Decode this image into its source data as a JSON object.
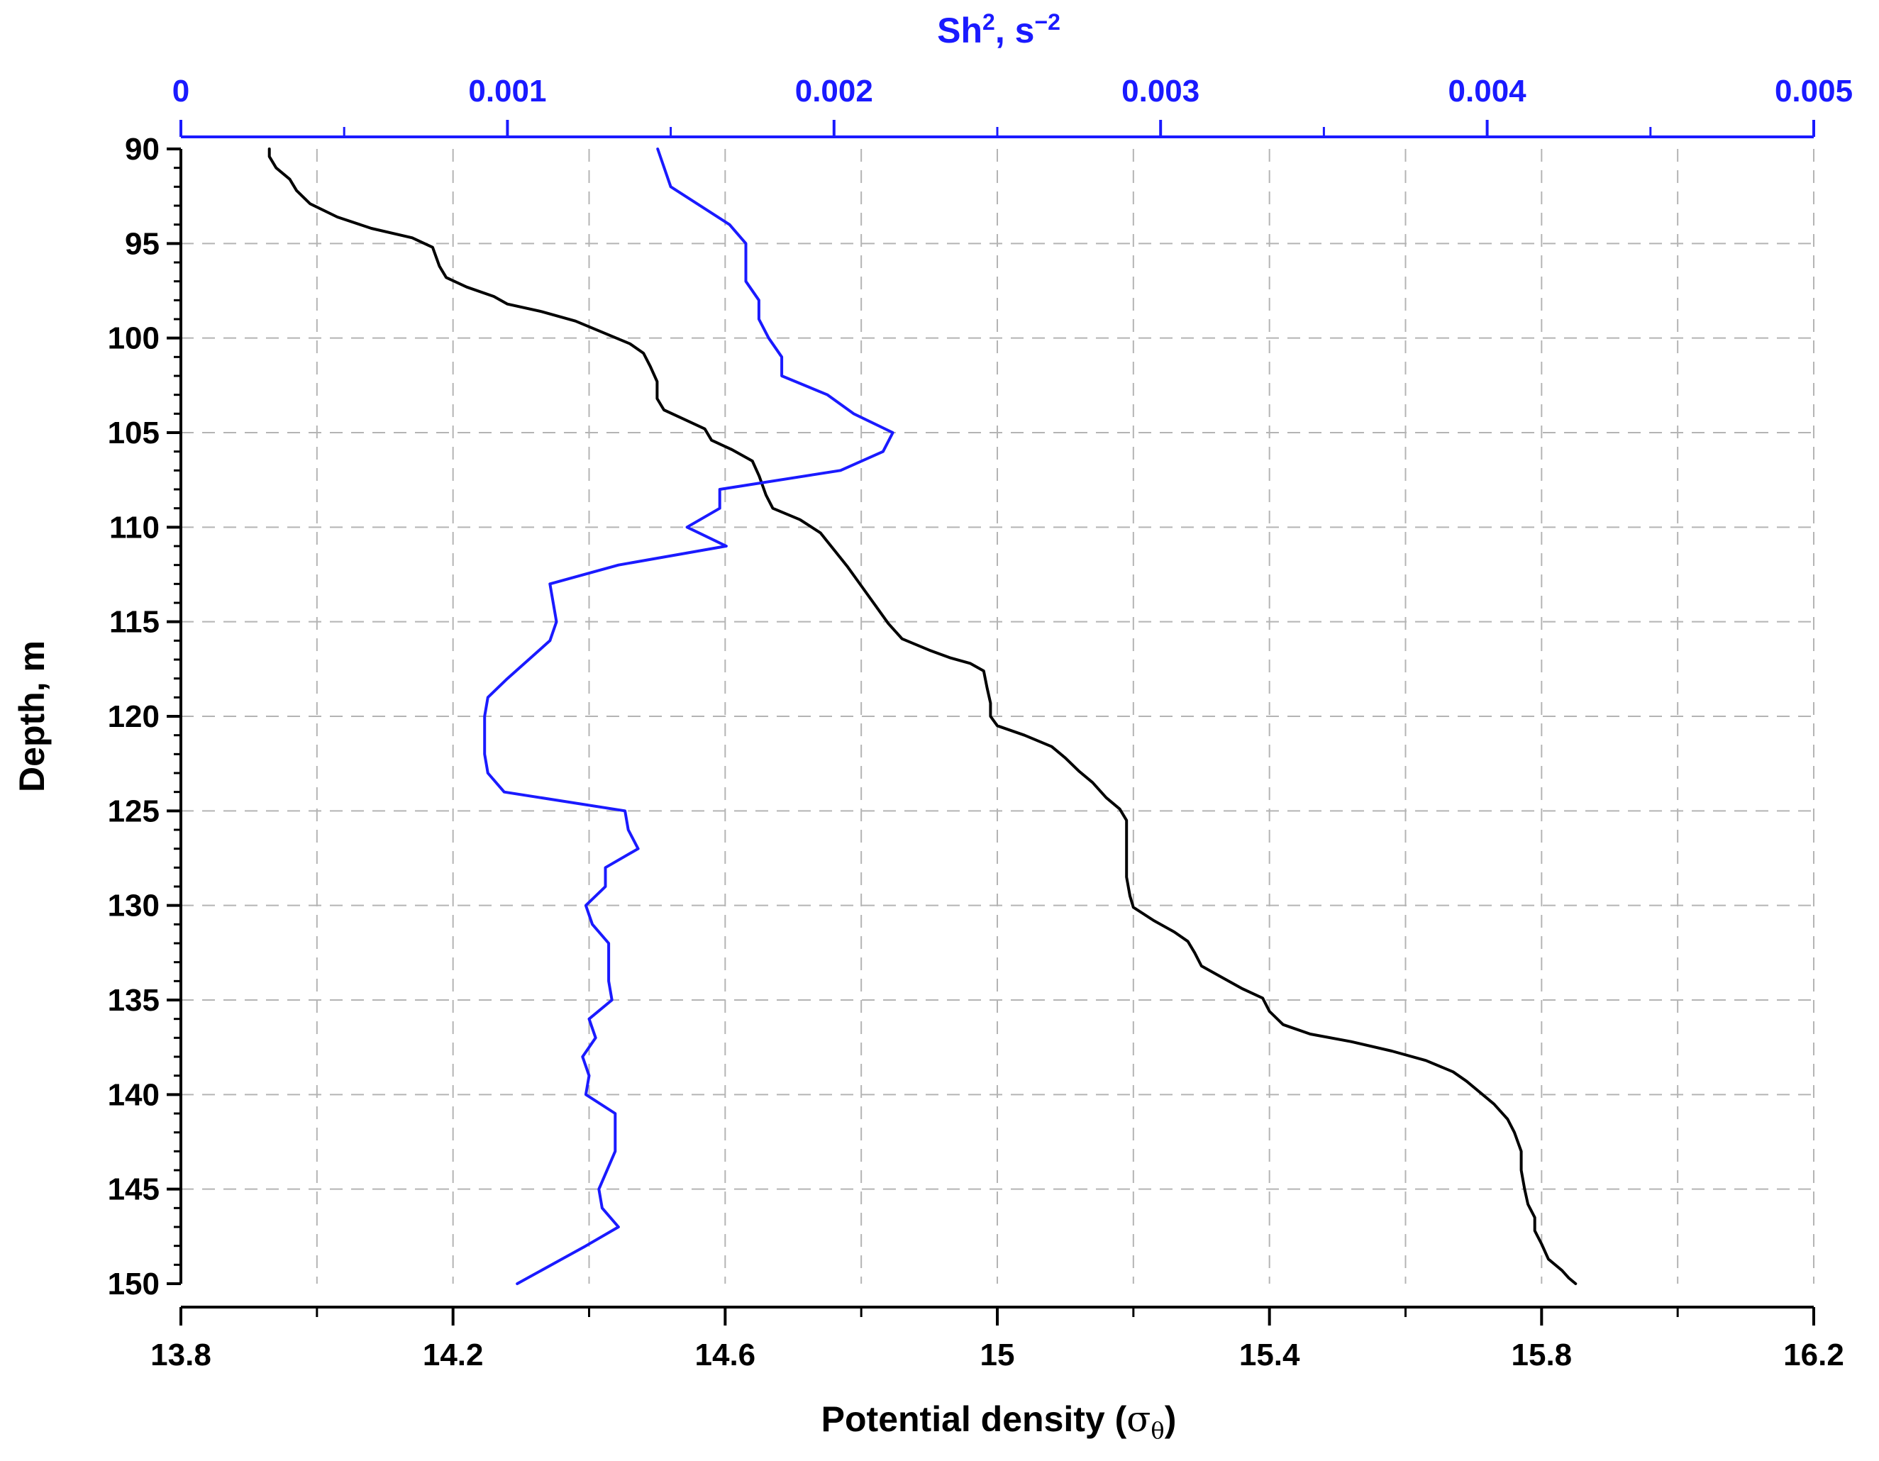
{
  "chart_data": {
    "type": "line",
    "ylabel": "Depth, m",
    "y_axis": {
      "range": [
        90,
        150
      ],
      "inverted": true,
      "ticks": [
        90,
        95,
        100,
        105,
        110,
        115,
        120,
        125,
        130,
        135,
        140,
        145,
        150
      ],
      "tick_labels": [
        "90",
        "95",
        "100",
        "105",
        "110",
        "115",
        "120",
        "125",
        "130",
        "135",
        "140",
        "145",
        "150"
      ]
    },
    "x_bottom": {
      "label_main": "Potential density (",
      "label_symbol": "σ",
      "label_sub": "θ",
      "label_end": ")",
      "range": [
        13.8,
        16.2
      ],
      "ticks": [
        13.8,
        14.2,
        14.6,
        15,
        15.4,
        15.8,
        16.2
      ],
      "tick_labels": [
        "13.8",
        "14.2",
        "14.6",
        "15",
        "15.4",
        "15.8",
        "16.2"
      ],
      "minor_ticks": [
        14.0,
        14.4,
        14.8,
        15.2,
        15.6,
        16.0
      ],
      "color": "#000000"
    },
    "x_top": {
      "label_base": "Sh",
      "label_sup": "2",
      "label_unit": ", s",
      "label_unit_sup": "−2",
      "range": [
        0,
        0.005
      ],
      "ticks": [
        0,
        0.001,
        0.002,
        0.003,
        0.004,
        0.005
      ],
      "tick_labels": [
        "0",
        "0.001",
        "0.002",
        "0.003",
        "0.004",
        "0.005"
      ],
      "minor_ticks": [
        0.0005,
        0.0015,
        0.0025,
        0.0035,
        0.0045
      ],
      "color": "#1a1aff"
    },
    "grid": true,
    "series": [
      {
        "axis": "x_bottom",
        "color": "#000000",
        "points": [
          [
            13.93,
            90.0
          ],
          [
            13.93,
            90.4
          ],
          [
            13.94,
            91.0
          ],
          [
            13.96,
            91.6
          ],
          [
            13.97,
            92.2
          ],
          [
            13.99,
            92.9
          ],
          [
            14.03,
            93.6
          ],
          [
            14.08,
            94.2
          ],
          [
            14.14,
            94.7
          ],
          [
            14.17,
            95.2
          ],
          [
            14.18,
            96.2
          ],
          [
            14.19,
            96.8
          ],
          [
            14.22,
            97.3
          ],
          [
            14.26,
            97.8
          ],
          [
            14.28,
            98.2
          ],
          [
            14.33,
            98.6
          ],
          [
            14.38,
            99.1
          ],
          [
            14.42,
            99.7
          ],
          [
            14.46,
            100.3
          ],
          [
            14.48,
            100.8
          ],
          [
            14.49,
            101.5
          ],
          [
            14.5,
            102.3
          ],
          [
            14.5,
            103.2
          ],
          [
            14.51,
            103.8
          ],
          [
            14.54,
            104.3
          ],
          [
            14.57,
            104.8
          ],
          [
            14.58,
            105.4
          ],
          [
            14.61,
            105.9
          ],
          [
            14.64,
            106.5
          ],
          [
            14.65,
            107.3
          ],
          [
            14.66,
            108.3
          ],
          [
            14.67,
            109.0
          ],
          [
            14.71,
            109.6
          ],
          [
            14.74,
            110.3
          ],
          [
            14.76,
            111.2
          ],
          [
            14.78,
            112.1
          ],
          [
            14.8,
            113.1
          ],
          [
            14.82,
            114.1
          ],
          [
            14.84,
            115.1
          ],
          [
            14.86,
            115.9
          ],
          [
            14.9,
            116.5
          ],
          [
            14.93,
            116.9
          ],
          [
            14.96,
            117.2
          ],
          [
            14.98,
            117.6
          ],
          [
            14.985,
            118.5
          ],
          [
            14.99,
            119.3
          ],
          [
            14.99,
            120.0
          ],
          [
            15.0,
            120.5
          ],
          [
            15.04,
            121.0
          ],
          [
            15.08,
            121.6
          ],
          [
            15.1,
            122.2
          ],
          [
            15.12,
            122.9
          ],
          [
            15.14,
            123.5
          ],
          [
            15.16,
            124.3
          ],
          [
            15.18,
            124.9
          ],
          [
            15.19,
            125.5
          ],
          [
            15.19,
            126.5
          ],
          [
            15.19,
            127.5
          ],
          [
            15.19,
            128.5
          ],
          [
            15.195,
            129.5
          ],
          [
            15.2,
            130.1
          ],
          [
            15.23,
            130.8
          ],
          [
            15.26,
            131.4
          ],
          [
            15.28,
            131.9
          ],
          [
            15.29,
            132.5
          ],
          [
            15.3,
            133.2
          ],
          [
            15.33,
            133.8
          ],
          [
            15.36,
            134.4
          ],
          [
            15.39,
            134.9
          ],
          [
            15.4,
            135.6
          ],
          [
            15.42,
            136.3
          ],
          [
            15.46,
            136.8
          ],
          [
            15.52,
            137.2
          ],
          [
            15.58,
            137.7
          ],
          [
            15.63,
            138.2
          ],
          [
            15.67,
            138.8
          ],
          [
            15.69,
            139.3
          ],
          [
            15.71,
            139.9
          ],
          [
            15.73,
            140.5
          ],
          [
            15.75,
            141.3
          ],
          [
            15.76,
            142.0
          ],
          [
            15.77,
            143.0
          ],
          [
            15.77,
            144.0
          ],
          [
            15.775,
            145.0
          ],
          [
            15.78,
            145.8
          ],
          [
            15.79,
            146.5
          ],
          [
            15.79,
            147.2
          ],
          [
            15.8,
            147.9
          ],
          [
            15.81,
            148.7
          ],
          [
            15.83,
            149.3
          ],
          [
            15.84,
            149.7
          ],
          [
            15.85,
            150.0
          ]
        ]
      },
      {
        "axis": "x_top",
        "color": "#1a1aff",
        "points": [
          [
            0.00146,
            90.0
          ],
          [
            0.0015,
            92.0
          ],
          [
            0.00168,
            94.0
          ],
          [
            0.00173,
            95.0
          ],
          [
            0.00173,
            97.0
          ],
          [
            0.00177,
            98.0
          ],
          [
            0.00177,
            99.0
          ],
          [
            0.0018,
            100.0
          ],
          [
            0.00184,
            101.0
          ],
          [
            0.00184,
            102.0
          ],
          [
            0.00198,
            103.0
          ],
          [
            0.00206,
            104.0
          ],
          [
            0.00218,
            105.0
          ],
          [
            0.00215,
            106.0
          ],
          [
            0.00202,
            107.0
          ],
          [
            0.00165,
            108.0
          ],
          [
            0.00165,
            109.0
          ],
          [
            0.00155,
            110.0
          ],
          [
            0.00167,
            111.0
          ],
          [
            0.00134,
            112.0
          ],
          [
            0.00113,
            113.0
          ],
          [
            0.00114,
            114.0
          ],
          [
            0.00115,
            115.0
          ],
          [
            0.00113,
            116.0
          ],
          [
            0.001,
            118.0
          ],
          [
            0.00094,
            119.0
          ],
          [
            0.00093,
            120.0
          ],
          [
            0.00093,
            121.0
          ],
          [
            0.00093,
            122.0
          ],
          [
            0.00094,
            123.0
          ],
          [
            0.00099,
            124.0
          ],
          [
            0.00136,
            125.0
          ],
          [
            0.00137,
            126.0
          ],
          [
            0.0014,
            127.0
          ],
          [
            0.0013,
            128.0
          ],
          [
            0.0013,
            129.0
          ],
          [
            0.00124,
            130.0
          ],
          [
            0.00126,
            131.0
          ],
          [
            0.00131,
            132.0
          ],
          [
            0.00131,
            134.0
          ],
          [
            0.00132,
            135.0
          ],
          [
            0.00125,
            136.0
          ],
          [
            0.00127,
            137.0
          ],
          [
            0.00123,
            138.0
          ],
          [
            0.00125,
            139.0
          ],
          [
            0.00124,
            140.0
          ],
          [
            0.00133,
            141.0
          ],
          [
            0.00133,
            143.0
          ],
          [
            0.00128,
            145.0
          ],
          [
            0.00129,
            146.0
          ],
          [
            0.00134,
            147.0
          ],
          [
            0.00124,
            148.0
          ],
          [
            0.00103,
            150.0
          ]
        ]
      }
    ]
  }
}
